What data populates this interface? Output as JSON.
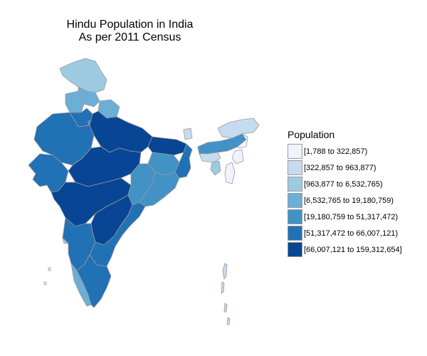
{
  "title": {
    "line1": "Hindu Population in India",
    "line2": "As per 2011 Census"
  },
  "legend": {
    "title": "Population",
    "items": [
      {
        "label": "[1,788 to 322,857)",
        "color": "#eff3ff"
      },
      {
        "label": "[322,857 to 963,877)",
        "color": "#c6dbef"
      },
      {
        "label": "[963,877 to 6,532,765)",
        "color": "#9ecae1"
      },
      {
        "label": "[6,532,765 to 19,180,759)",
        "color": "#6baed6"
      },
      {
        "label": "[19,180,759 to 51,317,472)",
        "color": "#4292c6"
      },
      {
        "label": "[51,317,472 to 66,007,121)",
        "color": "#2171b5"
      },
      {
        "label": "[66,007,121 to 159,312,654]",
        "color": "#084594"
      }
    ]
  },
  "map_data": {
    "type": "choropleth",
    "border_color": "#9a9a9a",
    "regions": [
      {
        "id": "jammu-kashmir",
        "class": 2
      },
      {
        "id": "himachal-pradesh",
        "class": 3
      },
      {
        "id": "punjab",
        "class": 3
      },
      {
        "id": "uttarakhand",
        "class": 3
      },
      {
        "id": "haryana",
        "class": 5
      },
      {
        "id": "delhi",
        "class": 4
      },
      {
        "id": "rajasthan",
        "class": 5
      },
      {
        "id": "uttar-pradesh",
        "class": 6
      },
      {
        "id": "gujarat",
        "class": 5
      },
      {
        "id": "madhya-pradesh",
        "class": 6
      },
      {
        "id": "bihar",
        "class": 6
      },
      {
        "id": "jharkhand",
        "class": 4
      },
      {
        "id": "west-bengal",
        "class": 5
      },
      {
        "id": "chhattisgarh",
        "class": 4
      },
      {
        "id": "odisha",
        "class": 4
      },
      {
        "id": "maharashtra",
        "class": 6
      },
      {
        "id": "telangana-andhra-north",
        "class": 6
      },
      {
        "id": "andhra-pradesh",
        "class": 5
      },
      {
        "id": "karnataka",
        "class": 5
      },
      {
        "id": "goa",
        "class": 2
      },
      {
        "id": "kerala",
        "class": 3
      },
      {
        "id": "tamil-nadu",
        "class": 5
      },
      {
        "id": "sikkim",
        "class": 1
      },
      {
        "id": "assam",
        "class": 4
      },
      {
        "id": "arunachal-pradesh",
        "class": 1
      },
      {
        "id": "meghalaya",
        "class": 1
      },
      {
        "id": "nagaland",
        "class": 0
      },
      {
        "id": "manipur",
        "class": 0
      },
      {
        "id": "mizoram",
        "class": 0
      },
      {
        "id": "tripura",
        "class": 2
      },
      {
        "id": "andaman-nicobar",
        "class": 1
      },
      {
        "id": "lakshadweep",
        "class": 0
      }
    ]
  }
}
